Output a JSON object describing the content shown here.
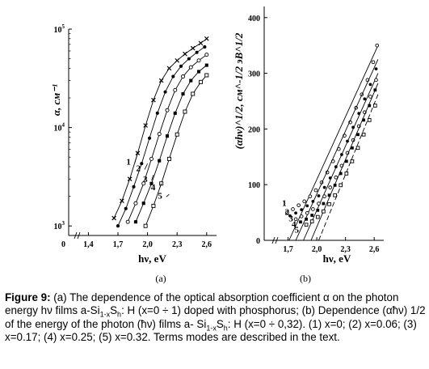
{
  "chart_data": [
    {
      "type": "line",
      "panel_label": "(a)",
      "title": "",
      "xlabel": "hν,  eV",
      "ylabel": "α, cм⁻¹",
      "xlim": [
        1.2,
        2.7
      ],
      "ylim": [
        800,
        100000
      ],
      "y_scale": "log",
      "x_ticks": [
        {
          "value": 1.4,
          "label": "1,4"
        },
        {
          "value": 1.7,
          "label": "1,7"
        },
        {
          "value": 2.0,
          "label": "2,0"
        },
        {
          "value": 2.3,
          "label": "2,3"
        },
        {
          "value": 2.6,
          "label": "2,6"
        }
      ],
      "origin_label": "0",
      "y_ticks": [
        {
          "value": 1000,
          "base": "10",
          "exp": "3"
        },
        {
          "value": 10000,
          "base": "10",
          "exp": "4"
        },
        {
          "value": 100000,
          "base": "10",
          "exp": "5"
        }
      ],
      "series": [
        {
          "label": "1",
          "marker": "x",
          "x": [
            1.66,
            1.74,
            1.82,
            1.9,
            1.98,
            2.06,
            2.14,
            2.22,
            2.3,
            2.38,
            2.46,
            2.54,
            2.6
          ],
          "y": [
            1200,
            1800,
            3000,
            5500,
            10500,
            19000,
            30000,
            40000,
            48000,
            56000,
            64000,
            72000,
            80000
          ]
        },
        {
          "label": "2",
          "marker": "filled-circle",
          "x": [
            1.7,
            1.78,
            1.86,
            1.94,
            2.02,
            2.1,
            2.18,
            2.26,
            2.34,
            2.42,
            2.5,
            2.58
          ],
          "y": [
            1000,
            1500,
            2500,
            4300,
            7800,
            14000,
            23000,
            33000,
            42000,
            50000,
            58000,
            66000
          ]
        },
        {
          "label": "3",
          "marker": "circle",
          "x": [
            1.8,
            1.88,
            1.96,
            2.04,
            2.12,
            2.2,
            2.28,
            2.36,
            2.44,
            2.52,
            2.6
          ],
          "y": [
            1100,
            1700,
            2700,
            4800,
            8600,
            15000,
            24000,
            33000,
            41000,
            48000,
            55000
          ]
        },
        {
          "label": "4",
          "marker": "filled-square",
          "x": [
            1.88,
            1.96,
            2.04,
            2.12,
            2.2,
            2.28,
            2.36,
            2.44,
            2.52,
            2.6
          ],
          "y": [
            1100,
            1700,
            2700,
            4600,
            8200,
            14000,
            22000,
            30000,
            37000,
            43000
          ]
        },
        {
          "label": "5",
          "marker": "square",
          "x": [
            1.98,
            2.06,
            2.14,
            2.22,
            2.3,
            2.38,
            2.46,
            2.54,
            2.6
          ],
          "y": [
            1000,
            1600,
            2700,
            4800,
            8500,
            14500,
            22000,
            29000,
            34000
          ]
        }
      ]
    },
    {
      "type": "scatter",
      "panel_label": "(b)",
      "title": "",
      "xlabel": "hν,  eV",
      "ylabel": "(αhν)^1/2, cм^-1/2 эВ^1/2",
      "xlim": [
        1.45,
        2.7
      ],
      "ylim": [
        0,
        420
      ],
      "x_ticks": [
        {
          "value": 1.7,
          "label": "1,7"
        },
        {
          "value": 2.0,
          "label": "2,0"
        },
        {
          "value": 2.3,
          "label": "2,3"
        },
        {
          "value": 2.6,
          "label": "2,6"
        }
      ],
      "origin_label": "0",
      "y_ticks": [
        {
          "value": 100,
          "label": "100"
        },
        {
          "value": 200,
          "label": "200"
        },
        {
          "value": 300,
          "label": "300"
        },
        {
          "value": 400,
          "label": "400"
        }
      ],
      "series": [
        {
          "label": "1",
          "marker": "circle",
          "x": [
            1.69,
            1.75,
            1.81,
            1.87,
            1.93,
            1.99,
            2.05,
            2.11,
            2.17,
            2.23,
            2.29,
            2.35,
            2.41,
            2.47,
            2.53,
            2.59,
            2.63
          ],
          "y": [
            50,
            56,
            63,
            70,
            79,
            90,
            104,
            122,
            142,
            164,
            188,
            212,
            238,
            262,
            288,
            320,
            350
          ],
          "fit": {
            "x": [
              1.71,
              2.64
            ],
            "y": [
              0,
              350
            ]
          }
        },
        {
          "label": "2",
          "marker": "filled-circle",
          "x": [
            1.72,
            1.78,
            1.84,
            1.9,
            1.96,
            2.02,
            2.08,
            2.14,
            2.2,
            2.26,
            2.32,
            2.38,
            2.44,
            2.5,
            2.56,
            2.62
          ],
          "y": [
            44,
            49,
            55,
            62,
            70,
            80,
            95,
            112,
            132,
            154,
            178,
            203,
            228,
            254,
            280,
            308
          ],
          "fit": {
            "x": [
              1.78,
              2.64
            ],
            "y": [
              0,
              325
            ]
          }
        },
        {
          "label": "3",
          "marker": "circle",
          "x": [
            1.78,
            1.84,
            1.9,
            1.96,
            2.02,
            2.08,
            2.14,
            2.2,
            2.26,
            2.32,
            2.38,
            2.44,
            2.5,
            2.56,
            2.62
          ],
          "y": [
            38,
            43,
            49,
            56,
            66,
            79,
            95,
            113,
            134,
            157,
            180,
            205,
            230,
            258,
            288
          ],
          "fit": {
            "x": [
              1.86,
              2.64
            ],
            "y": [
              0,
              300
            ]
          }
        },
        {
          "label": "4",
          "marker": "filled-square",
          "x": [
            1.83,
            1.89,
            1.95,
            2.01,
            2.07,
            2.13,
            2.19,
            2.25,
            2.31,
            2.37,
            2.43,
            2.49,
            2.55,
            2.61
          ],
          "y": [
            33,
            38,
            45,
            54,
            66,
            81,
            99,
            120,
            142,
            166,
            190,
            216,
            242,
            270
          ],
          "fit": {
            "x": [
              1.94,
              2.64
            ],
            "y": [
              0,
              282
            ]
          }
        },
        {
          "label": "5",
          "marker": "square",
          "x": [
            1.89,
            1.95,
            2.01,
            2.07,
            2.13,
            2.19,
            2.25,
            2.31,
            2.37,
            2.43,
            2.49,
            2.55,
            2.61
          ],
          "y": [
            28,
            34,
            42,
            52,
            65,
            81,
            99,
            120,
            142,
            166,
            190,
            216,
            242
          ],
          "fit": {
            "x": [
              2.02,
              2.64
            ],
            "y": [
              0,
              262
            ]
          }
        }
      ]
    }
  ],
  "caption": {
    "label": "Figure 9:",
    "text_1": " (a) The dependence of the optical absorption coefficient α on the photon energy hν films a-Si",
    "sub_1": "1-x",
    "text_2": "S",
    "sub_2": "h",
    "text_3": ": H (x=0 ÷ 1) doped with phosphorus; (b) Dependence (αħν) 1/2 of the energy of the photon (ħν) films a- Si",
    "sub_3": "1-x",
    "text_4": "S",
    "sub_4": "h",
    "text_5": ": H (x=0 ÷ 0,32). (1) x=0; (2) x=0.06; (3) x=0.17; (4) x=0.25; (5) x=0.32. Terms modes are described in the text."
  }
}
